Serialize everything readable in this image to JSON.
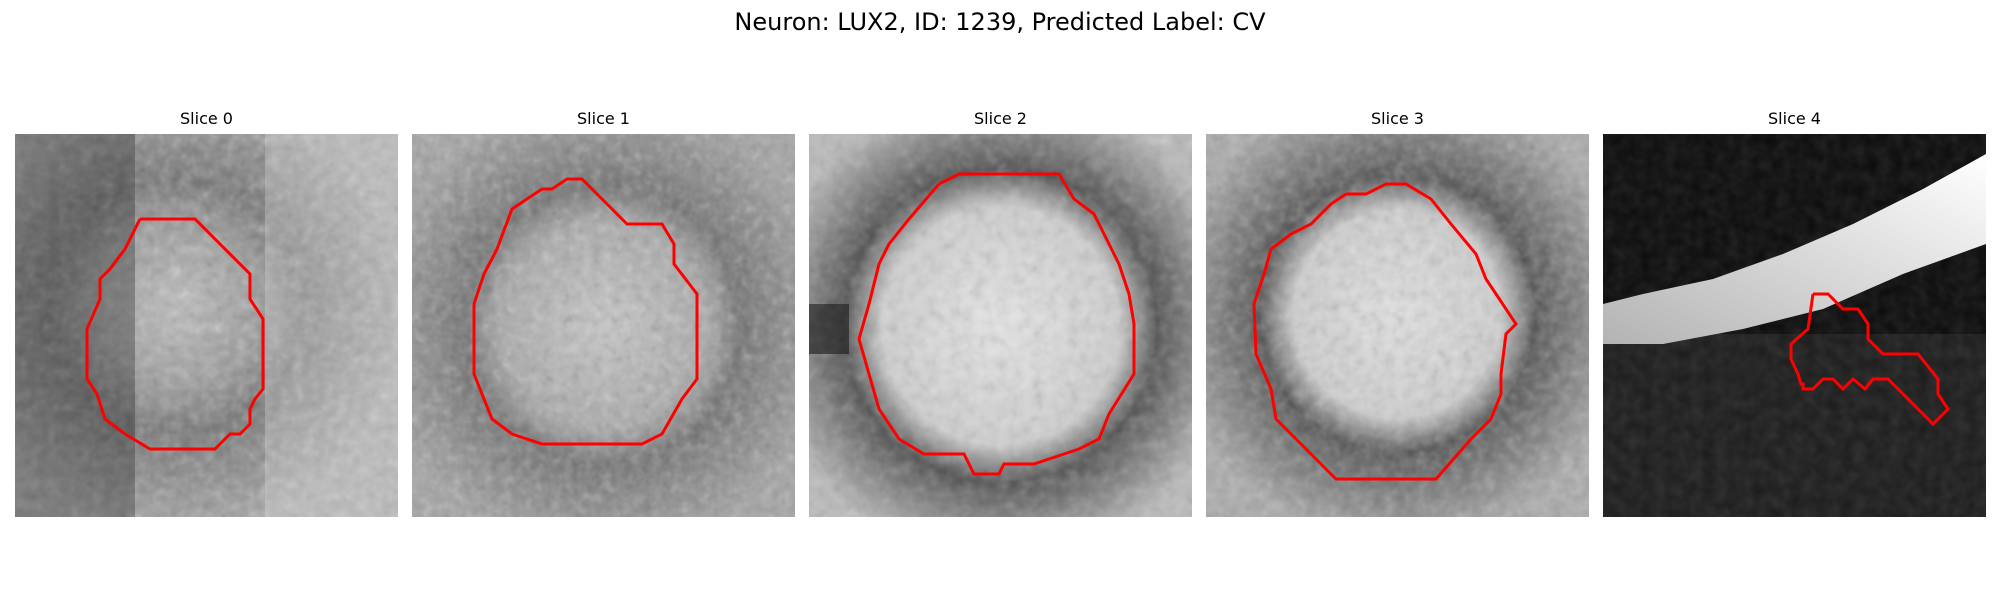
{
  "figure": {
    "title": "Neuron: LUX2, ID: 1239, Predicted Label: CV"
  },
  "contour_color": "#ff0000",
  "panels": [
    {
      "title": "Slice 0",
      "image_description": "grayscale microscopy crop, granular texture",
      "contour": "roughly circular outline"
    },
    {
      "title": "Slice 1",
      "image_description": "grayscale microscopy crop, granular texture",
      "contour": "roughly circular outline"
    },
    {
      "title": "Slice 2",
      "image_description": "grayscale microscopy crop, bright round blob",
      "contour": "roughly circular outline"
    },
    {
      "title": "Slice 3",
      "image_description": "grayscale microscopy crop, bright round blob with dark ring",
      "contour": "roughly circular outline"
    },
    {
      "title": "Slice 4",
      "image_description": "mostly dark crop with bright diagonal band",
      "contour": "small irregular outline"
    }
  ]
}
